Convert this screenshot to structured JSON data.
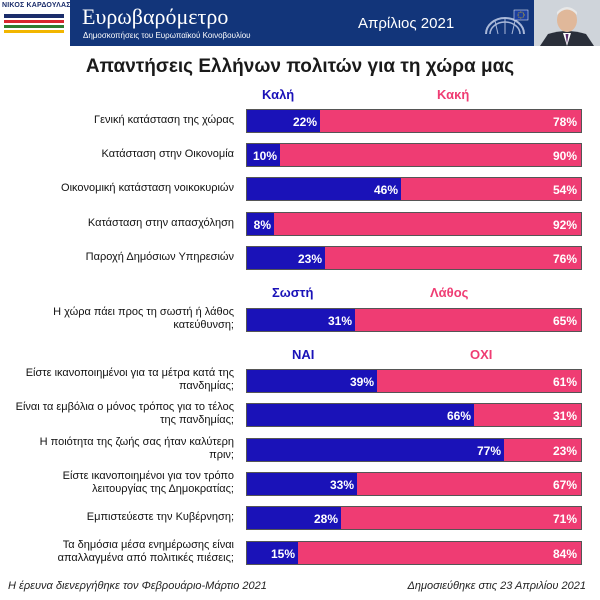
{
  "header": {
    "logo_name": "ΝΙΚΟΣ ΚΑΡΔΟΥΛΑΣ",
    "title": "Ευρωβαρόμετρο",
    "subtitle": "Δημοσκοπήσεις του Ευρωπαϊκού Κοινοβουλίου",
    "date": "Απρίλιος 2021",
    "brand_color": "#12357a"
  },
  "chart_data": {
    "type": "bar",
    "orientation": "horizontal-stacked-100",
    "title": "Απαντήσεις Ελλήνων πολιτών για τη χώρα μας",
    "colors": {
      "positive": "#1a12b8",
      "negative": "#ef3c73"
    },
    "groups": [
      {
        "positive_label": "Καλή",
        "negative_label": "Κακή",
        "items": [
          {
            "question": "Γενική κατάσταση της χώρας",
            "positive": 22,
            "negative": 78,
            "positive_text": "22%",
            "negative_text": "78%"
          },
          {
            "question": "Κατάσταση στην Οικονομία",
            "positive": 10,
            "negative": 90,
            "positive_text": "10%",
            "negative_text": "90%"
          },
          {
            "question": "Οικονομική κατάσταση νοικοκυριών",
            "positive": 46,
            "negative": 54,
            "positive_text": "46%",
            "negative_text": "54%"
          },
          {
            "question": "Κατάσταση στην απασχόληση",
            "positive": 8,
            "negative": 92,
            "positive_text": "8%",
            "negative_text": "92%"
          },
          {
            "question": "Παροχή Δημόσιων Υπηρεσιών",
            "positive": 23,
            "negative": 76,
            "positive_text": "23%",
            "negative_text": "76%"
          }
        ]
      },
      {
        "positive_label": "Σωστή",
        "negative_label": "Λάθος",
        "items": [
          {
            "question": "Η χώρα πάει προς τη σωστή ή λάθος κατεύθυνση;",
            "positive": 31,
            "negative": 65,
            "positive_text": "31%",
            "negative_text": "65%"
          }
        ]
      },
      {
        "positive_label": "ΝΑΙ",
        "negative_label": "ΟΧΙ",
        "items": [
          {
            "question": "Είστε ικανοποιημένοι για τα μέτρα κατά της πανδημίας;",
            "positive": 39,
            "negative": 61,
            "positive_text": "39%",
            "negative_text": "61%"
          },
          {
            "question": "Είναι τα εμβόλια ο μόνος τρόπος για το τέλος της πανδημίας;",
            "positive": 66,
            "negative": 31,
            "positive_text": "66%",
            "negative_text": "31%"
          },
          {
            "question": "Η ποιότητα της ζωής σας ήταν καλύτερη πριν;",
            "positive": 77,
            "negative": 23,
            "positive_text": "77%",
            "negative_text": "23%"
          },
          {
            "question": "Είστε ικανοποιημένοι για τον τρόπο λειτουργίας της Δημοκρατίας;",
            "positive": 33,
            "negative": 67,
            "positive_text": "33%",
            "negative_text": "67%"
          },
          {
            "question": "Εμπιστεύεστε την Κυβέρνηση;",
            "positive": 28,
            "negative": 71,
            "positive_text": "28%",
            "negative_text": "71%"
          },
          {
            "question": "Τα δημόσια μέσα ενημέρωσης είναι απαλλαγμένα από πολιτικές πιέσεις;",
            "positive": 15,
            "negative": 84,
            "positive_text": "15%",
            "negative_text": "84%"
          }
        ]
      }
    ]
  },
  "footer": {
    "left": "Η έρευνα διενεργήθηκε τον Φεβρουάριο-Μάρτιο 2021",
    "right": "Δημοσιεύθηκε στις 23 Απριλίου 2021"
  }
}
